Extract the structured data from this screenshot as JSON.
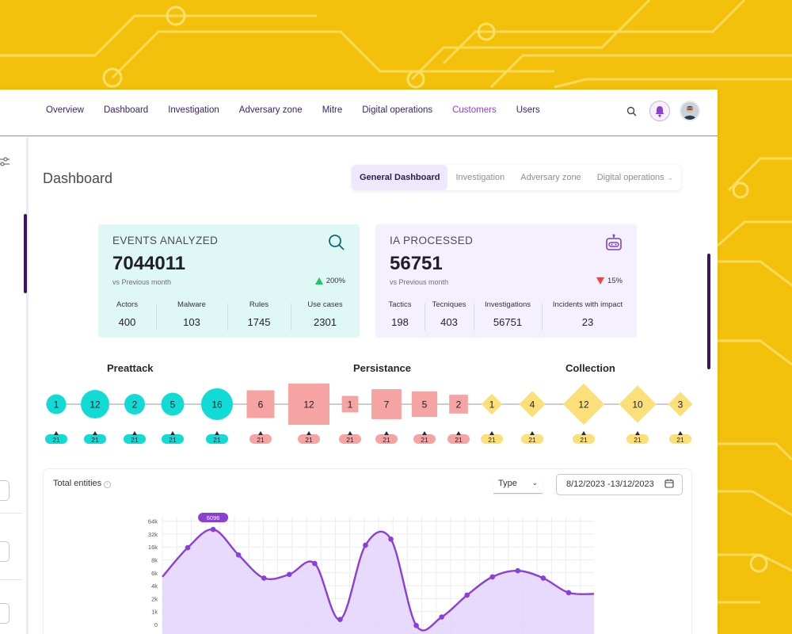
{
  "nav": {
    "items": [
      {
        "label": "Overview",
        "active": false
      },
      {
        "label": "Dashboard",
        "active": false
      },
      {
        "label": "Investigation",
        "active": false
      },
      {
        "label": "Adversary zone",
        "active": false
      },
      {
        "label": "Mitre",
        "active": false
      },
      {
        "label": "Digital operations",
        "active": false
      },
      {
        "label": "Customers",
        "active": true
      },
      {
        "label": "Users",
        "active": false
      }
    ],
    "icons": [
      "search-icon",
      "bell-icon",
      "avatar"
    ]
  },
  "page": {
    "title": "Dashboard"
  },
  "tabs": [
    {
      "label": "General Dashboard",
      "active": true
    },
    {
      "label": "Investigation",
      "active": false
    },
    {
      "label": "Adversary zone",
      "active": false
    },
    {
      "label": "Digital operations",
      "active": false,
      "dropdown": true
    }
  ],
  "cards": {
    "events": {
      "title": "EVENTS ANALYZED",
      "value": "7044011",
      "sub": "vs Previous month",
      "delta": "200%",
      "delta_dir": "up",
      "icon": "search-icon",
      "metrics": [
        {
          "label": "Actors",
          "value": "400"
        },
        {
          "label": "Malware",
          "value": "103"
        },
        {
          "label": "Rules",
          "value": "1745"
        },
        {
          "label": "Use cases",
          "value": "2301"
        }
      ]
    },
    "ia": {
      "title": "IA PROCESSED",
      "value": "56751",
      "sub": "vs Previous month",
      "delta": "15%",
      "delta_dir": "down",
      "icon": "robot-icon",
      "metrics": [
        {
          "label": "Tactics",
          "value": "198"
        },
        {
          "label": "Tecniques",
          "value": "403"
        },
        {
          "label": "Investigations",
          "value": "56751"
        },
        {
          "label": "Incidents with impact",
          "value": "23"
        }
      ]
    }
  },
  "phases": [
    {
      "label": "Preattack",
      "shape": "circle",
      "color": "#12dbd6",
      "nodes": [
        1,
        12,
        2,
        5,
        16
      ],
      "badges": [
        "21",
        "21",
        "21",
        "21",
        "21"
      ]
    },
    {
      "label": "Persistance",
      "shape": "square",
      "color": "#f6a3a3",
      "nodes": [
        6,
        12,
        1,
        7,
        5,
        2
      ],
      "badges": [
        "21",
        "21",
        "21",
        "21",
        "21",
        "21"
      ]
    },
    {
      "label": "Collection",
      "shape": "diamond",
      "color": "#fbe07a",
      "nodes": [
        1,
        4,
        12,
        10,
        3
      ],
      "badges": [
        "21",
        "21",
        "21",
        "21",
        "21"
      ]
    }
  ],
  "colors": {
    "accent": "#8a3fd6",
    "dark": "#3b155f",
    "up": "#22c55e",
    "down": "#ef4444"
  },
  "chart": {
    "title": "Total entities",
    "type_label": "Type",
    "date_range": "8/12/2023 -13/12/2023",
    "peak_label": "6096"
  },
  "chart_data": {
    "type": "area",
    "title": "Total entities",
    "y_ticks": [
      "64k",
      "32k",
      "16k",
      "8k",
      "6k",
      "4k",
      "2k",
      "1k",
      "0"
    ],
    "grid": true,
    "series": [
      {
        "values": [
          4.5,
          6.9,
          8.4,
          6.3,
          4.4,
          4.7,
          5.6,
          1.0,
          7.1,
          7.6,
          0.5,
          1.2,
          3.0,
          4.5,
          5.0,
          4.4,
          3.2,
          3.1
        ]
      }
    ]
  }
}
